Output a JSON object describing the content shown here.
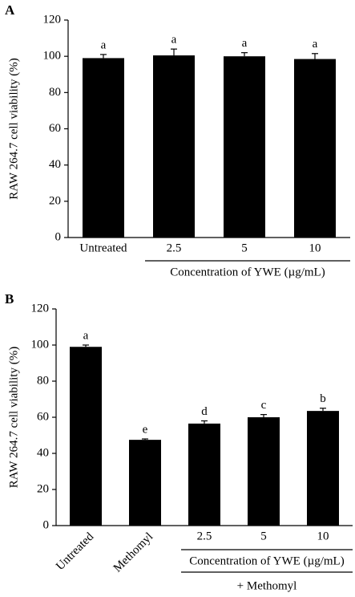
{
  "chart_data": [
    {
      "type": "bar",
      "panel": "A",
      "y_label": "RAW 264.7 cell viability (%)",
      "categories": [
        "Untreated",
        "2.5",
        "5",
        "10"
      ],
      "values": [
        99,
        100.5,
        100,
        98.5
      ],
      "errors": [
        2,
        3.5,
        2,
        3
      ],
      "annotations": [
        "a",
        "a",
        "a",
        "a"
      ],
      "group_label": "Concentration of YWE (µg/mL)",
      "color": "#000000",
      "ylim": [
        0,
        120
      ],
      "yticks": [
        0,
        20,
        40,
        60,
        80,
        100,
        120
      ]
    },
    {
      "type": "bar",
      "panel": "B",
      "y_label": "RAW 264.7 cell viability (%)",
      "categories": [
        "Untreated",
        "Methomyl",
        "2.5",
        "5",
        "10"
      ],
      "values": [
        99,
        47.5,
        56.5,
        60,
        63.5
      ],
      "errors": [
        1,
        0.5,
        1.5,
        1.5,
        1.5
      ],
      "annotations": [
        "a",
        "e",
        "d",
        "c",
        "b"
      ],
      "group_label": "Concentration of YWE (µg/mL)",
      "group_sublabel": "+ Methomyl",
      "color": "#000000",
      "ylim": [
        0,
        120
      ],
      "yticks": [
        0,
        20,
        40,
        60,
        80,
        100,
        120
      ]
    }
  ]
}
